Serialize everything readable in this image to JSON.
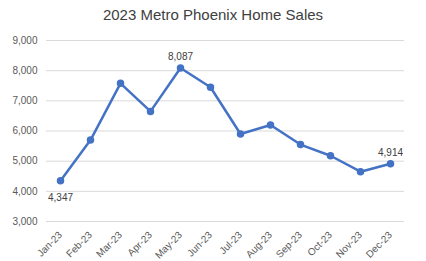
{
  "chart_data": {
    "type": "line",
    "title": "2023 Metro Phoenix Home Sales",
    "categories": [
      "Jan-23",
      "Feb-23",
      "Mar-23",
      "Apr-23",
      "May-23",
      "Jun-23",
      "Jul-23",
      "Aug-23",
      "Sep-23",
      "Oct-23",
      "Nov-23",
      "Dec-23"
    ],
    "values": [
      4347,
      5700,
      7580,
      6650,
      8087,
      7450,
      5900,
      6200,
      5550,
      5180,
      4650,
      4914
    ],
    "value_labels": [
      "4,347",
      null,
      null,
      null,
      "8,087",
      null,
      null,
      null,
      null,
      null,
      null,
      "4,914"
    ],
    "color": "#4472c4",
    "marker": "circle",
    "ylim": [
      3000,
      9000
    ],
    "yticks": [
      {
        "value": 3000,
        "label": "3,000"
      },
      {
        "value": 4000,
        "label": "4,000"
      },
      {
        "value": 5000,
        "label": "5,000"
      },
      {
        "value": 6000,
        "label": "6,000"
      },
      {
        "value": 7000,
        "label": "7,000"
      },
      {
        "value": 8000,
        "label": "8,000"
      },
      {
        "value": 9000,
        "label": "9,000"
      }
    ],
    "grid": true
  }
}
